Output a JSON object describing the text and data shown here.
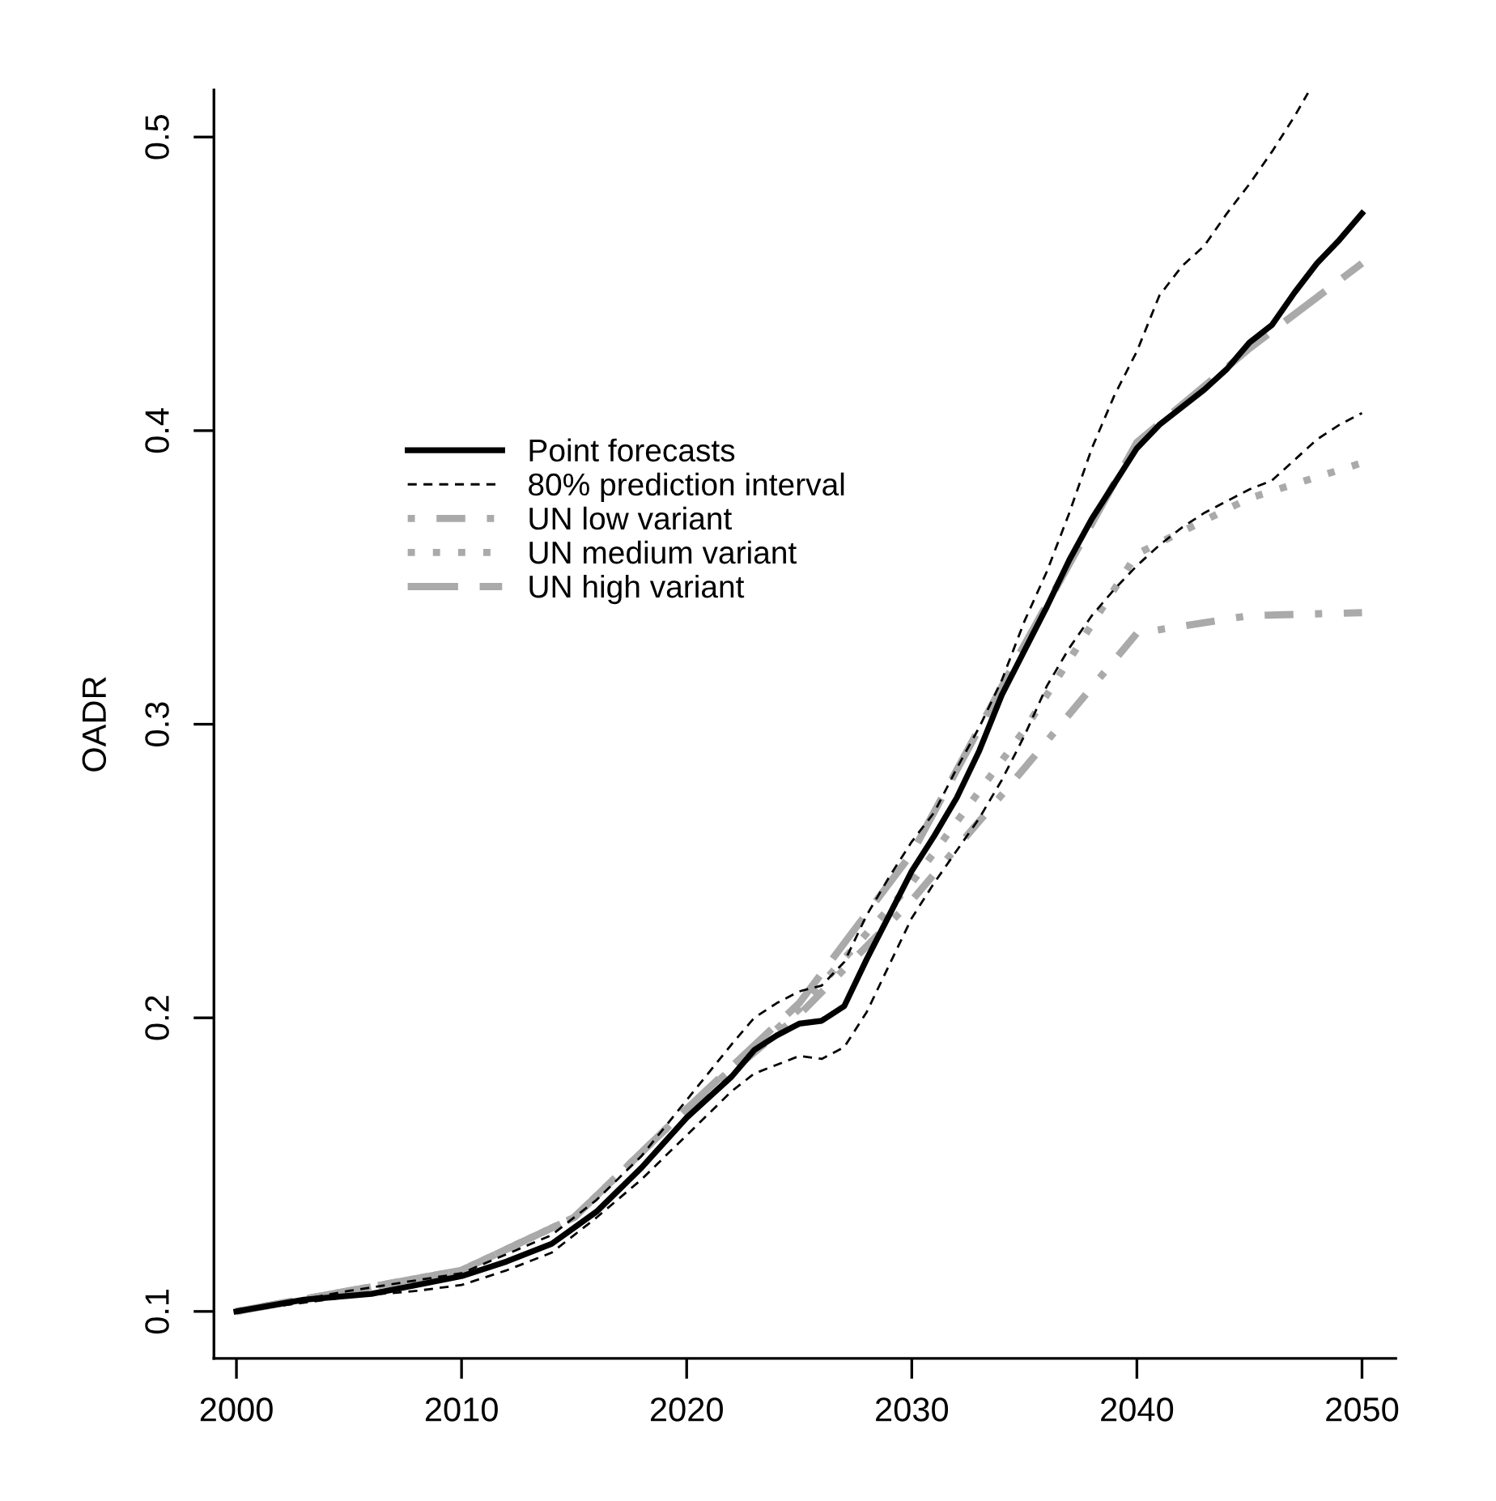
{
  "chart_data": {
    "type": "line",
    "ylabel": "OADR",
    "xlim": [
      1999,
      2051.5
    ],
    "ylim": [
      0.084,
      0.516
    ],
    "xticks": [
      2000,
      2010,
      2020,
      2030,
      2040,
      2050
    ],
    "yticks": [
      0.1,
      0.2,
      0.3,
      0.4,
      0.5
    ],
    "grid": false,
    "legend": "center left",
    "marker": "none",
    "series": [
      {
        "name": "Point forecasts",
        "color": "#000000",
        "line_style": "solid",
        "x": [
          2000,
          2003,
          2006,
          2008,
          2010,
          2012,
          2014,
          2016,
          2018,
          2020,
          2022,
          2023,
          2024,
          2025,
          2026,
          2027,
          2028,
          2029,
          2030,
          2031,
          2032,
          2033,
          2034,
          2035,
          2036,
          2037,
          2038,
          2039,
          2040,
          2041,
          2042,
          2043,
          2044,
          2045,
          2046,
          2047,
          2048,
          2049,
          2050
        ],
        "values": [
          0.1,
          0.104,
          0.106,
          0.109,
          0.112,
          0.117,
          0.123,
          0.134,
          0.149,
          0.166,
          0.18,
          0.189,
          0.194,
          0.198,
          0.199,
          0.204,
          0.22,
          0.235,
          0.25,
          0.262,
          0.275,
          0.291,
          0.31,
          0.325,
          0.34,
          0.356,
          0.37,
          0.382,
          0.394,
          0.402,
          0.408,
          0.414,
          0.421,
          0.43,
          0.436,
          0.447,
          0.457,
          0.465,
          0.474
        ]
      },
      {
        "name": "80% prediction interval",
        "color": "#000000",
        "line_style": "dashed",
        "x": [
          2000,
          2005,
          2010,
          2014,
          2016,
          2018,
          2020,
          2022,
          2023,
          2024,
          2025,
          2026,
          2027,
          2028,
          2029,
          2030,
          2031,
          2032,
          2033,
          2034,
          2035,
          2036,
          2037,
          2038,
          2039,
          2040,
          2041,
          2042,
          2043,
          2044,
          2045,
          2046,
          2047,
          2047.6
        ],
        "values": [
          0.1,
          0.107,
          0.113,
          0.126,
          0.138,
          0.153,
          0.172,
          0.191,
          0.2,
          0.205,
          0.209,
          0.211,
          0.219,
          0.235,
          0.248,
          0.26,
          0.27,
          0.285,
          0.299,
          0.315,
          0.335,
          0.352,
          0.372,
          0.394,
          0.412,
          0.427,
          0.446,
          0.456,
          0.463,
          0.474,
          0.484,
          0.495,
          0.507,
          0.515
        ]
      },
      {
        "color": "#000000",
        "line_style": "dashed",
        "x": [
          2000,
          2005,
          2008,
          2010,
          2012,
          2014,
          2016,
          2018,
          2020,
          2022,
          2023,
          2024,
          2025,
          2026,
          2027,
          2028,
          2029,
          2030,
          2031,
          2032,
          2033,
          2034,
          2035,
          2036,
          2037,
          2038,
          2039,
          2040,
          2041,
          2042,
          2043,
          2044,
          2045,
          2046,
          2047,
          2048,
          2049,
          2050
        ],
        "values": [
          0.1,
          0.105,
          0.107,
          0.109,
          0.114,
          0.12,
          0.132,
          0.145,
          0.16,
          0.175,
          0.181,
          0.184,
          0.187,
          0.186,
          0.19,
          0.202,
          0.218,
          0.234,
          0.246,
          0.257,
          0.268,
          0.281,
          0.296,
          0.313,
          0.326,
          0.337,
          0.346,
          0.354,
          0.361,
          0.367,
          0.372,
          0.376,
          0.38,
          0.383,
          0.39,
          0.397,
          0.402,
          0.406
        ]
      },
      {
        "name": "UN low variant",
        "color": "#aaaaaa",
        "line_style": "dashdot",
        "x": [
          2000,
          2005,
          2010,
          2015,
          2020,
          2025,
          2030,
          2035,
          2040,
          2045,
          2050
        ],
        "values": [
          0.1,
          0.107,
          0.114,
          0.132,
          0.169,
          0.201,
          0.24,
          0.285,
          0.331,
          0.337,
          0.338
        ]
      },
      {
        "name": "UN medium variant",
        "color": "#aaaaaa",
        "line_style": "dotted",
        "x": [
          2000,
          2005,
          2010,
          2015,
          2020,
          2025,
          2030,
          2035,
          2040,
          2045,
          2050
        ],
        "values": [
          0.1,
          0.107,
          0.114,
          0.132,
          0.169,
          0.203,
          0.246,
          0.298,
          0.358,
          0.377,
          0.389
        ]
      },
      {
        "name": "UN high variant",
        "color": "#aaaaaa",
        "line_style": "longdash",
        "x": [
          2000,
          2005,
          2010,
          2015,
          2020,
          2025,
          2030,
          2035,
          2040,
          2045,
          2050
        ],
        "values": [
          0.1,
          0.107,
          0.114,
          0.132,
          0.169,
          0.205,
          0.256,
          0.327,
          0.396,
          0.428,
          0.457
        ]
      }
    ]
  }
}
